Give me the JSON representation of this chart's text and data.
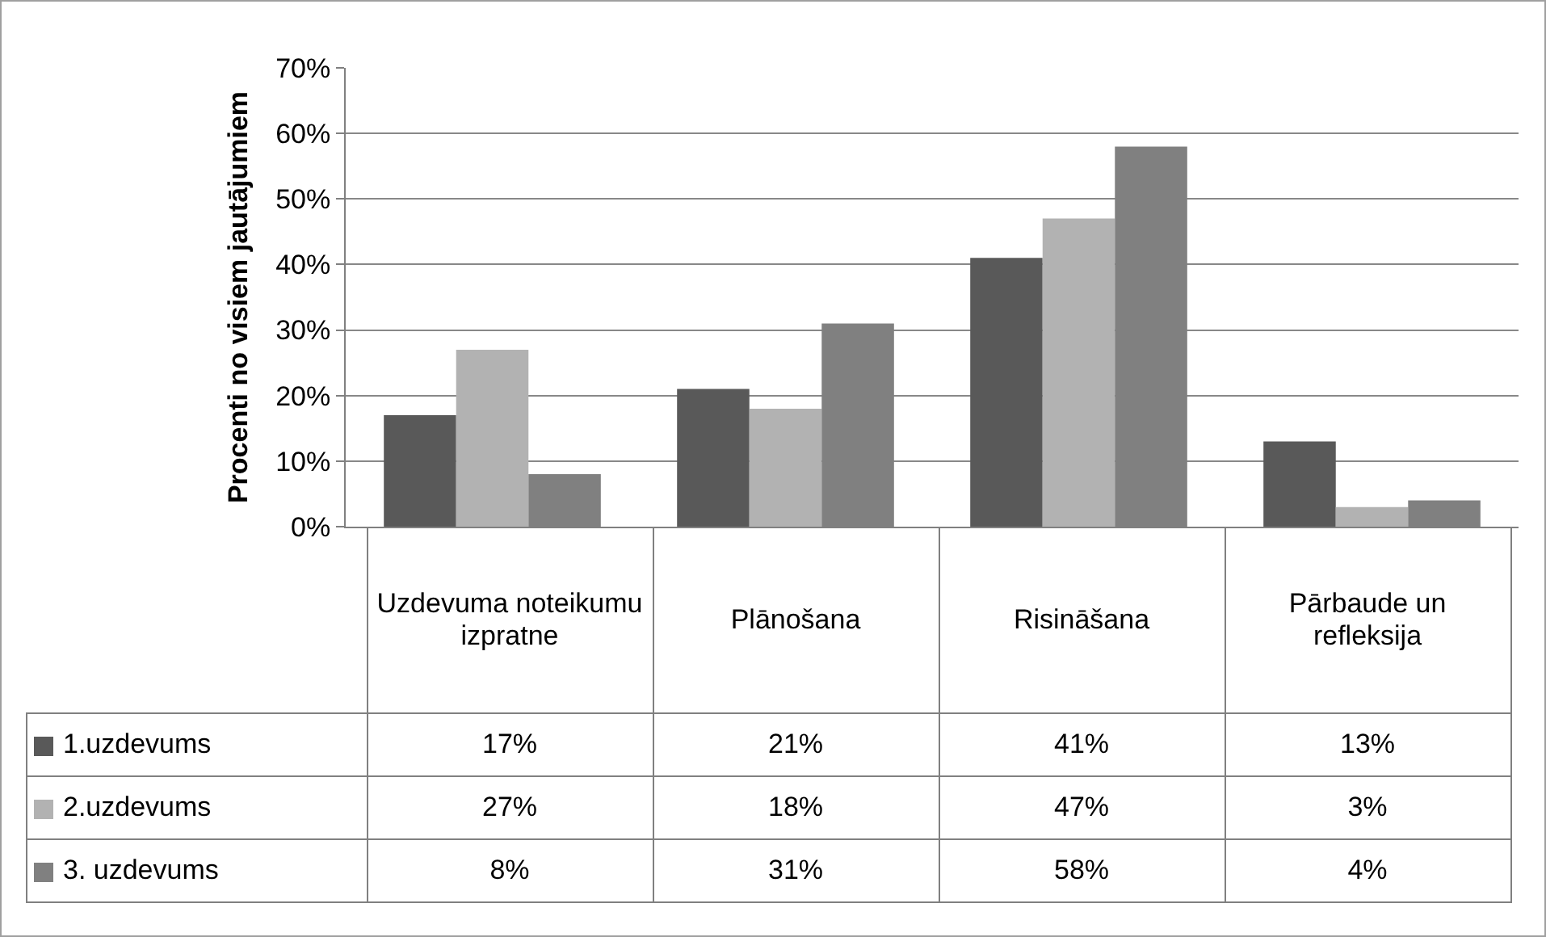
{
  "chart_data": {
    "type": "bar",
    "ylabel": "Procenti no visiem jautājumiem",
    "categories": [
      "Uzdevuma noteikumu izpratne",
      "Plānošana",
      "Risināšana",
      "Pārbaude un refleksija"
    ],
    "series": [
      {
        "name": "1.uzdevums",
        "color": "#595959",
        "values": [
          17,
          21,
          41,
          13
        ],
        "value_labels": [
          "17%",
          "21%",
          "41%",
          "13%"
        ]
      },
      {
        "name": "2.uzdevums",
        "color": "#b2b2b2",
        "values": [
          27,
          18,
          47,
          3
        ],
        "value_labels": [
          "27%",
          "18%",
          "47%",
          "3%"
        ]
      },
      {
        "name": "3. uzdevums",
        "color": "#808080",
        "values": [
          8,
          31,
          58,
          4
        ],
        "value_labels": [
          "8%",
          "31%",
          "58%",
          "4%"
        ]
      }
    ],
    "ylim": [
      0,
      70
    ],
    "yticks": [
      {
        "value": 0,
        "label": "0%"
      },
      {
        "value": 10,
        "label": "10%"
      },
      {
        "value": 20,
        "label": "20%"
      },
      {
        "value": 30,
        "label": "30%"
      },
      {
        "value": 40,
        "label": "40%"
      },
      {
        "value": 50,
        "label": "50%"
      },
      {
        "value": 60,
        "label": "60%"
      },
      {
        "value": 70,
        "label": "70%"
      }
    ],
    "grid": "y",
    "legend": "bottom left"
  }
}
